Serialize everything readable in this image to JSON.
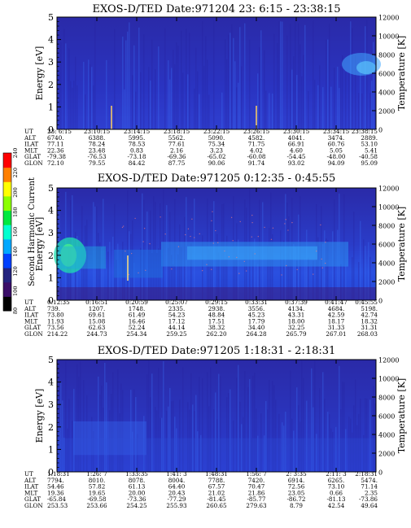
{
  "colorbar": {
    "label": "Second Harmonic Current",
    "ticks": [
      "80",
      "100",
      "120",
      "140",
      "160",
      "180",
      "200",
      "220",
      "240"
    ],
    "colors": [
      "#000000",
      "#3a0d68",
      "#23237f",
      "#0040ff",
      "#00a8ff",
      "#00ffd0",
      "#00e840",
      "#8cff00",
      "#ffff00",
      "#ff8000",
      "#ff0000"
    ]
  },
  "chart_data": [
    {
      "type": "heatmap",
      "title": "EXOS-D/TED   Date:971204  23: 6:15 - 23:38:15",
      "ylabel": "Energy [eV]",
      "ylabel_right": "Temperature [K]",
      "ylim": [
        0,
        5
      ],
      "ylim_right": [
        0,
        12000
      ],
      "yticks": [
        "0",
        "1",
        "2",
        "3",
        "4",
        "5"
      ],
      "yticks_right": [
        "0",
        "2000",
        "4000",
        "6000",
        "8000",
        "10000",
        "12000"
      ],
      "table": {
        "labels": [
          "UT",
          "ALT",
          "ILAT",
          "MLT",
          "GLAT",
          "GLON"
        ],
        "columns": [
          [
            "23: 6:15",
            "6740.",
            "77.11",
            "22.36",
            "-79.38",
            "72.10"
          ],
          [
            "23:10:15",
            "6388.",
            "78.24",
            "23.48",
            "-76.53",
            "79.55"
          ],
          [
            "23:14:15",
            "5995.",
            "78.53",
            "0.83",
            "-73.18",
            "84.42"
          ],
          [
            "23:18:15",
            "5562.",
            "77.61",
            "2.16",
            "-69.36",
            "87.75"
          ],
          [
            "23:22:15",
            "5090.",
            "75.34",
            "3.23",
            "-65.02",
            "90.06"
          ],
          [
            "23:26:15",
            "4582.",
            "71.75",
            "4.02",
            "-60.08",
            "91.74"
          ],
          [
            "23:30:15",
            "4041.",
            "66.91",
            "4.60",
            "-54.45",
            "93.02"
          ],
          [
            "23:34:15",
            "3474.",
            "60.76",
            "5.05",
            "-48.00",
            "94.09"
          ],
          [
            "23:38:15",
            "2889.",
            "53.10",
            "5.41",
            "-40.58",
            "95.09"
          ]
        ]
      }
    },
    {
      "type": "heatmap",
      "title": "EXOS-D/TED   Date:971205  0:12:35 - 0:45:55",
      "ylabel": "Energy [eV]",
      "ylabel_right": "Temperature [K]",
      "ylim": [
        0,
        5
      ],
      "ylim_right": [
        0,
        12000
      ],
      "yticks": [
        "0",
        "1",
        "2",
        "3",
        "4",
        "5"
      ],
      "yticks_right": [
        "0",
        "2000",
        "4000",
        "6000",
        "8000",
        "10000",
        "12000"
      ],
      "table": {
        "labels": [
          "UT",
          "ALT",
          "ILAT",
          "MLT",
          "GLAT",
          "GLON"
        ],
        "columns": [
          [
            "0:12:35",
            "739.",
            "73.80",
            "11.93",
            "73.56",
            "214.22"
          ],
          [
            "0:16:51",
            "1207.",
            "69.61",
            "15.08",
            "62.63",
            "244.73"
          ],
          [
            "0:20:59",
            "1748.",
            "61.49",
            "16.46",
            "52.24",
            "254.34"
          ],
          [
            "0:25:07",
            "2335.",
            "54.23",
            "17.12",
            "44.14",
            "259.25"
          ],
          [
            "0:29:15",
            "2938.",
            "48.84",
            "17.51",
            "38.32",
            "262.20"
          ],
          [
            "0:33:31",
            "3556.",
            "45.23",
            "17.79",
            "34.40",
            "264.28"
          ],
          [
            "0:37:39",
            "4134.",
            "43.31",
            "18.00",
            "32.25",
            "265.79"
          ],
          [
            "0:41:47",
            "4684.",
            "42.59",
            "18.17",
            "31.33",
            "267.01"
          ],
          [
            "0:45:55",
            "5198.",
            "42.74",
            "18.32",
            "31.31",
            "268.03"
          ]
        ]
      }
    },
    {
      "type": "heatmap",
      "title": "EXOS-D/TED   Date:971205  1:18:31 - 2:18:31",
      "ylabel": "Energy [eV]",
      "ylabel_right": "Temperature [K]",
      "ylim": [
        0,
        5
      ],
      "ylim_right": [
        0,
        12000
      ],
      "yticks": [
        "0",
        "1",
        "2",
        "3",
        "4",
        "5"
      ],
      "yticks_right": [
        "0",
        "2000",
        "4000",
        "6000",
        "8000",
        "10000",
        "12000"
      ],
      "table": {
        "labels": [
          "UT",
          "ALT",
          "ILAT",
          "MLT",
          "GLAT",
          "GLON"
        ],
        "columns": [
          [
            "1:18:31",
            "7794.",
            "54.46",
            "19.36",
            "-65.84",
            "253.53"
          ],
          [
            "1:26: 7",
            "8010.",
            "57.82",
            "19.65",
            "-69.58",
            "253.66"
          ],
          [
            "1:33:35",
            "8078.",
            "61.13",
            "20.00",
            "-73.36",
            "254.25"
          ],
          [
            "1:41: 3",
            "8004.",
            "64.40",
            "20.43",
            "-77.29",
            "255.93"
          ],
          [
            "1:48:31",
            "7788.",
            "67.57",
            "21.02",
            "-81.45",
            "260.65"
          ],
          [
            "1:56: 7",
            "7420.",
            "70.47",
            "21.86",
            "-85.77",
            "279.63"
          ],
          [
            "2: 3:35",
            "6914.",
            "72.56",
            "23.05",
            "-86.72",
            "8.79"
          ],
          [
            "2:11: 3",
            "6265.",
            "73.10",
            "0.66",
            "-81.13",
            "42.54"
          ],
          [
            "2:18:31",
            "5474.",
            "71.14",
            "2.35",
            "-73.86",
            "49.64"
          ]
        ]
      }
    }
  ]
}
